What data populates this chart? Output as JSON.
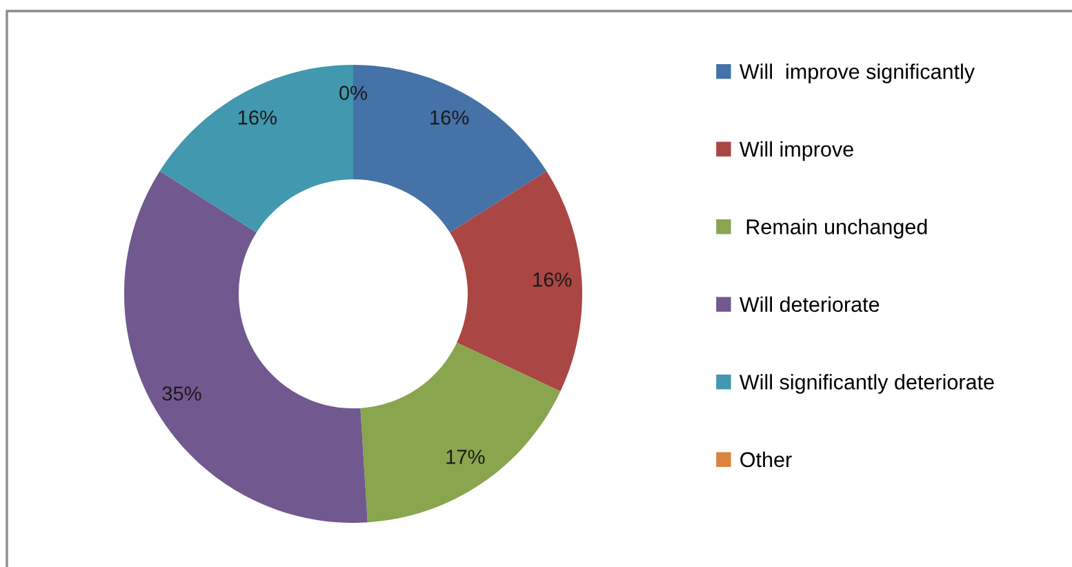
{
  "chart_data": {
    "type": "donut",
    "categories": [
      "Will  improve significantly",
      "Will improve",
      " Remain unchanged",
      "Will deteriorate",
      "Will significantly deteriorate",
      "Other"
    ],
    "values": [
      16,
      16,
      17,
      35,
      16,
      0
    ],
    "colors": [
      "#4572a7",
      "#aa4643",
      "#89a54e",
      "#71588f",
      "#4198af",
      "#db843d"
    ],
    "value_labels": [
      "16%",
      "16%",
      "17%",
      "35%",
      "16%",
      "0%"
    ],
    "legend": "right"
  }
}
